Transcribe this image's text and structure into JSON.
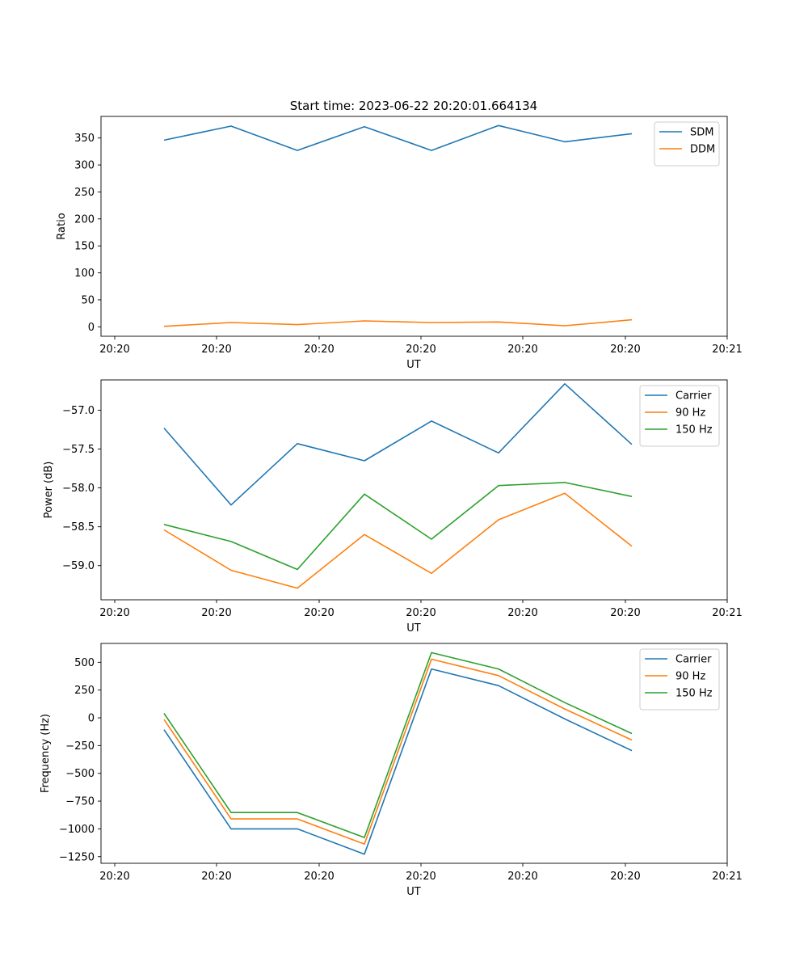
{
  "figure_title": "Start time: 2023-06-22 20:20:01.664134",
  "colors": {
    "blue": "#1f77b4",
    "orange": "#ff7f0e",
    "green": "#2ca02c"
  },
  "x_tick_labels": [
    "20:20",
    "20:20",
    "20:20",
    "20:20",
    "20:20",
    "20:20",
    "20:20",
    "20:21"
  ],
  "chart_data": [
    {
      "type": "line",
      "title": "Start time: 2023-06-22 20:20:01.664134",
      "xlabel": "UT",
      "ylabel": "Ratio",
      "ylim": [
        -17.5,
        390
      ],
      "yticks": [
        0,
        50,
        100,
        150,
        200,
        250,
        300,
        350
      ],
      "legend": "top-right",
      "grid": false,
      "series": [
        {
          "name": "SDM",
          "color": "#1f77b4",
          "values": [
            346,
            372,
            327,
            371,
            327,
            373,
            343,
            358
          ]
        },
        {
          "name": "DDM",
          "color": "#ff7f0e",
          "values": [
            1,
            8,
            4,
            11,
            8,
            9,
            2,
            13
          ]
        }
      ]
    },
    {
      "type": "line",
      "title": "",
      "xlabel": "UT",
      "ylabel": "Power (dB)",
      "ylim": [
        -59.44,
        -56.61
      ],
      "yticks": [
        -59.0,
        -58.5,
        -58.0,
        -57.5,
        -57.0
      ],
      "ytick_labels": [
        "−59.0",
        "−58.5",
        "−58.0",
        "−57.5",
        "−57.0"
      ],
      "legend": "top-right",
      "grid": false,
      "series": [
        {
          "name": "Carrier",
          "color": "#1f77b4",
          "values": [
            -57.23,
            -58.22,
            -57.43,
            -57.65,
            -57.14,
            -57.55,
            -56.66,
            -57.44
          ]
        },
        {
          "name": "90 Hz",
          "color": "#ff7f0e",
          "values": [
            -58.54,
            -59.06,
            -59.29,
            -58.6,
            -59.1,
            -58.41,
            -58.07,
            -58.75
          ]
        },
        {
          "name": "150 Hz",
          "color": "#2ca02c",
          "values": [
            -58.47,
            -58.69,
            -59.05,
            -58.08,
            -58.66,
            -57.97,
            -57.93,
            -58.11
          ]
        }
      ]
    },
    {
      "type": "line",
      "title": "",
      "xlabel": "UT",
      "ylabel": "Frequency (Hz)",
      "ylim": [
        -1310,
        670
      ],
      "yticks": [
        -1250,
        -1000,
        -750,
        -500,
        -250,
        0,
        250,
        500
      ],
      "ytick_labels": [
        "−1250",
        "−1000",
        "−750",
        "−500",
        "−250",
        "0",
        "250",
        "500"
      ],
      "legend": "top-right",
      "grid": false,
      "series": [
        {
          "name": "Carrier",
          "color": "#1f77b4",
          "values": [
            -107,
            -1000,
            -1000,
            -1228,
            440,
            290,
            -10,
            -295
          ]
        },
        {
          "name": "90 Hz",
          "color": "#ff7f0e",
          "values": [
            -15,
            -910,
            -910,
            -1137,
            528,
            380,
            80,
            -200
          ]
        },
        {
          "name": "150 Hz",
          "color": "#2ca02c",
          "values": [
            40,
            -853,
            -853,
            -1078,
            587,
            440,
            137,
            -142
          ]
        }
      ]
    }
  ]
}
